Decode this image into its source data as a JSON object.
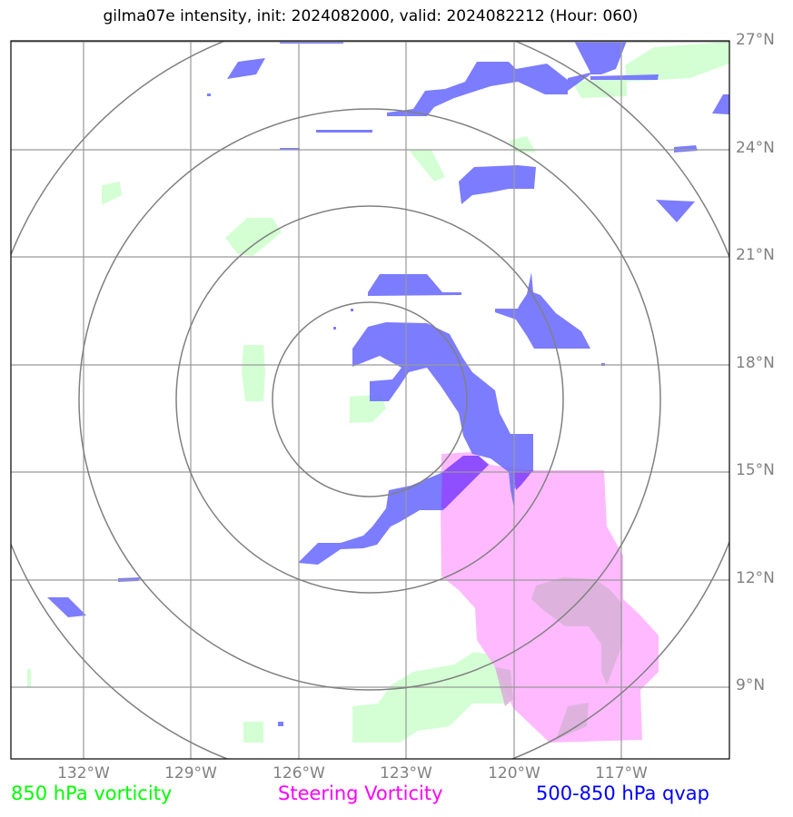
{
  "title": "gilma07e intensity, init: 2024082000, valid: 2024082212 (Hour: 060)",
  "lat_labels": [
    "27°N",
    "24°N",
    "21°N",
    "18°N",
    "15°N",
    "12°N",
    "9°N"
  ],
  "lon_labels": [
    "132°W",
    "129°W",
    "126°W",
    "123°W",
    "120°W",
    "117°W"
  ],
  "legend": [
    {
      "label": "850 hPa vorticity",
      "color": "#00ff00"
    },
    {
      "label": "Steering Vorticity",
      "color": "#ff00ff"
    },
    {
      "label": "500-850 hPa qvap",
      "color": "#0000ff"
    }
  ],
  "colors": {
    "vorticity_850": "#ccffcc",
    "steering_vorticity": "#ffb3ff",
    "qvap": "#6b6bff",
    "grid": "#999999",
    "range_rings": "#808080"
  }
}
